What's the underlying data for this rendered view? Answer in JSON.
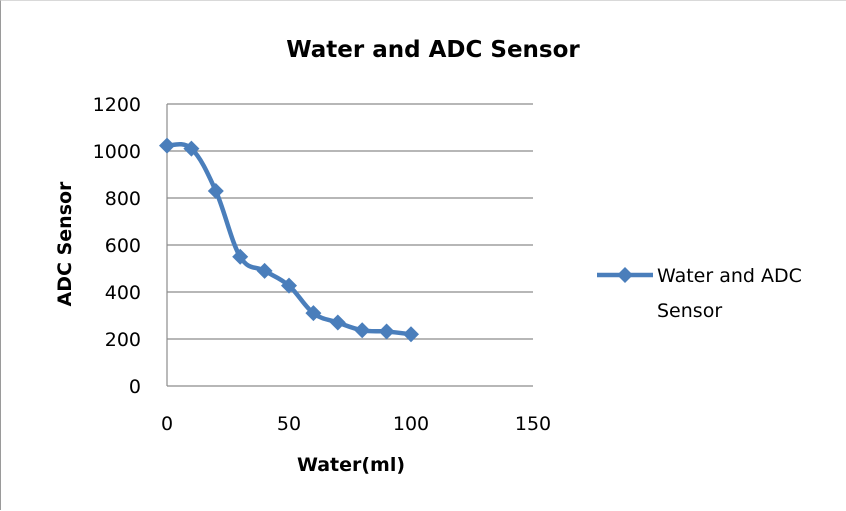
{
  "chart_data": {
    "type": "line",
    "title": "Water and ADC Sensor",
    "xlabel": "Water(ml)",
    "ylabel": "ADC Sensor",
    "xlim": [
      0,
      150
    ],
    "ylim": [
      0,
      1200
    ],
    "xticks": [
      0,
      50,
      100,
      150
    ],
    "yticks": [
      0,
      200,
      400,
      600,
      800,
      1000,
      1200
    ],
    "grid": "horizontal",
    "legend_position": "right",
    "series": [
      {
        "name": "Water and ADC Sensor",
        "color": "#4a7ebb",
        "marker": "diamond",
        "smooth": true,
        "x": [
          0,
          10,
          20,
          30,
          40,
          50,
          60,
          70,
          80,
          90,
          100
        ],
        "y": [
          1023,
          1010,
          830,
          550,
          490,
          427,
          310,
          270,
          237,
          232,
          220
        ]
      }
    ]
  }
}
